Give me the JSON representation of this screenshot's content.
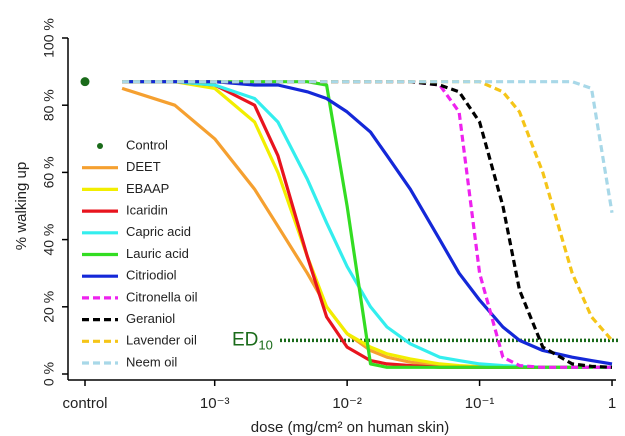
{
  "chart_data": {
    "type": "line",
    "y_label": "% walking up",
    "x_label": "dose (mg/cm² on human skin)",
    "log_x": true,
    "xlim": [
      0.000162,
      1.053
    ],
    "ylim": [
      0,
      100
    ],
    "xticks": [
      {
        "value": 0.001,
        "label": "10⁻³"
      },
      {
        "value": 0.01,
        "label": "10⁻²"
      },
      {
        "value": 0.1,
        "label": "10⁻¹"
      },
      1
    ],
    "yticks": [
      {
        "value": 0,
        "label": "0 %"
      },
      {
        "value": 20,
        "label": "20 %"
      },
      {
        "value": 40,
        "label": "40 %"
      },
      {
        "value": 60,
        "label": "60 %"
      },
      {
        "value": 80,
        "label": "80 %"
      },
      {
        "value": 100,
        "label": "100 %"
      }
    ],
    "control": {
      "name": "Control",
      "label": "control",
      "value": 87,
      "color": "#1a6b1a"
    },
    "ed10": {
      "label": "ED",
      "subscript": "10",
      "value": 10,
      "color": "#1a6b1a"
    },
    "x": [
      0.0002,
      0.0005,
      0.001,
      0.002,
      0.003,
      0.005,
      0.007,
      0.01,
      0.015,
      0.02,
      0.03,
      0.05,
      0.07,
      0.1,
      0.15,
      0.2,
      0.3,
      0.5,
      0.7,
      1
    ],
    "series": [
      {
        "name": "DEET",
        "color": "#f5a030",
        "dash": false,
        "values": [
          85,
          80,
          70,
          55,
          44,
          30,
          20,
          12,
          7,
          5,
          3.5,
          2.5,
          2.2,
          2,
          2,
          2,
          2,
          2,
          2,
          2
        ]
      },
      {
        "name": "EBAAP",
        "color": "#f2ee00",
        "dash": false,
        "values": [
          87,
          87,
          85,
          75,
          60,
          35,
          20,
          12,
          8,
          6,
          4.5,
          3,
          2.5,
          2.2,
          2,
          2,
          2,
          2,
          2,
          2
        ]
      },
      {
        "name": "Icaridin",
        "color": "#e8141e",
        "dash": false,
        "values": [
          87,
          87,
          86,
          80,
          65,
          35,
          17,
          8,
          4,
          3,
          2.5,
          2,
          2,
          2,
          2,
          2,
          2,
          2,
          2,
          2
        ]
      },
      {
        "name": "Capric acid",
        "color": "#33eeee",
        "dash": false,
        "values": [
          87,
          87,
          86,
          82,
          75,
          58,
          45,
          32,
          20,
          14,
          9,
          5,
          4,
          3,
          2.5,
          2.3,
          2,
          2,
          2,
          2
        ]
      },
      {
        "name": "Lauric acid",
        "color": "#33dd22",
        "dash": false,
        "values": [
          87,
          87,
          87,
          87,
          87,
          87,
          86,
          50,
          3,
          2,
          2,
          2,
          2,
          2,
          2,
          2,
          2,
          2,
          2,
          2
        ]
      },
      {
        "name": "Citriodiol",
        "color": "#1428d8",
        "dash": false,
        "values": [
          87,
          87,
          87,
          86,
          86,
          84,
          82,
          78,
          72,
          65,
          55,
          40,
          30,
          22,
          14,
          10,
          7,
          5,
          4,
          3
        ]
      },
      {
        "name": "Citronella oil",
        "color": "#ee22ee",
        "dash": true,
        "values": [
          87,
          87,
          87,
          87,
          87,
          87,
          87,
          87,
          87,
          87,
          87,
          86,
          78,
          30,
          5,
          2.5,
          2,
          2,
          2,
          2
        ]
      },
      {
        "name": "Geraniol",
        "color": "#000000",
        "dash": true,
        "values": [
          87,
          87,
          87,
          87,
          87,
          87,
          87,
          87,
          87,
          87,
          87,
          86,
          84,
          75,
          50,
          25,
          8,
          3,
          2.3,
          2
        ]
      },
      {
        "name": "Lavender oil",
        "color": "#f5c518",
        "dash": true,
        "values": [
          87,
          87,
          87,
          87,
          87,
          87,
          87,
          87,
          87,
          87,
          87,
          87,
          87,
          87,
          84,
          78,
          60,
          30,
          17,
          10
        ]
      },
      {
        "name": "Neem oil",
        "color": "#a8d8e8",
        "dash": true,
        "values": [
          87,
          87,
          87,
          87,
          87,
          87,
          87,
          87,
          87,
          87,
          87,
          87,
          87,
          87,
          87,
          87,
          87,
          87,
          85,
          48
        ]
      }
    ]
  }
}
